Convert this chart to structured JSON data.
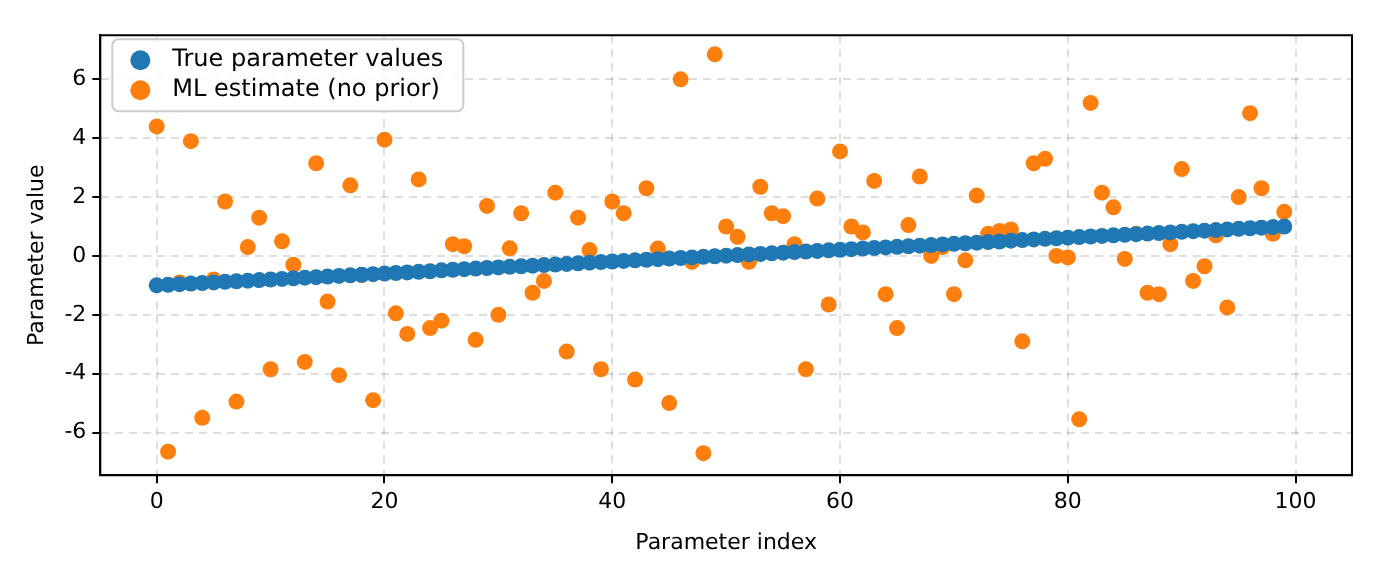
{
  "chart_data": {
    "type": "scatter",
    "xlabel": "Parameter index",
    "ylabel": "Parameter value",
    "x": [
      0,
      1,
      2,
      3,
      4,
      5,
      6,
      7,
      8,
      9,
      10,
      11,
      12,
      13,
      14,
      15,
      16,
      17,
      18,
      19,
      20,
      21,
      22,
      23,
      24,
      25,
      26,
      27,
      28,
      29,
      30,
      31,
      32,
      33,
      34,
      35,
      36,
      37,
      38,
      39,
      40,
      41,
      42,
      43,
      44,
      45,
      46,
      47,
      48,
      49,
      50,
      51,
      52,
      53,
      54,
      55,
      56,
      57,
      58,
      59,
      60,
      61,
      62,
      63,
      64,
      65,
      66,
      67,
      68,
      69,
      70,
      71,
      72,
      73,
      74,
      75,
      76,
      77,
      78,
      79,
      80,
      81,
      82,
      83,
      84,
      85,
      86,
      87,
      88,
      89,
      90,
      91,
      92,
      93,
      94,
      95,
      96,
      97,
      98,
      99
    ],
    "series": [
      {
        "name": "True parameter values",
        "color": "#1f77b4",
        "values": [
          -1.0,
          -0.98,
          -0.96,
          -0.94,
          -0.92,
          -0.9,
          -0.88,
          -0.86,
          -0.84,
          -0.82,
          -0.8,
          -0.78,
          -0.76,
          -0.74,
          -0.72,
          -0.7,
          -0.68,
          -0.66,
          -0.64,
          -0.62,
          -0.6,
          -0.58,
          -0.56,
          -0.54,
          -0.52,
          -0.49,
          -0.47,
          -0.45,
          -0.43,
          -0.41,
          -0.39,
          -0.37,
          -0.35,
          -0.33,
          -0.31,
          -0.29,
          -0.27,
          -0.25,
          -0.23,
          -0.21,
          -0.19,
          -0.17,
          -0.15,
          -0.13,
          -0.11,
          -0.09,
          -0.07,
          -0.05,
          -0.03,
          -0.01,
          0.01,
          0.03,
          0.05,
          0.07,
          0.09,
          0.11,
          0.13,
          0.15,
          0.17,
          0.19,
          0.21,
          0.23,
          0.25,
          0.27,
          0.29,
          0.31,
          0.33,
          0.35,
          0.37,
          0.39,
          0.41,
          0.43,
          0.45,
          0.47,
          0.49,
          0.52,
          0.54,
          0.56,
          0.58,
          0.6,
          0.62,
          0.64,
          0.66,
          0.68,
          0.7,
          0.72,
          0.74,
          0.76,
          0.78,
          0.8,
          0.82,
          0.84,
          0.86,
          0.88,
          0.9,
          0.92,
          0.94,
          0.96,
          0.98,
          1.0
        ]
      },
      {
        "name": "ML estimate (no prior)",
        "color": "#ff7f0e",
        "values": [
          4.4,
          -6.65,
          -0.9,
          3.9,
          -5.5,
          -0.8,
          1.85,
          -4.95,
          0.3,
          1.3,
          -3.85,
          0.5,
          -0.3,
          -3.6,
          3.15,
          -1.55,
          -4.05,
          2.4,
          -0.65,
          -4.9,
          3.95,
          -1.95,
          -2.65,
          2.6,
          -2.45,
          -2.2,
          0.4,
          0.33,
          -2.85,
          1.7,
          -2.0,
          0.26,
          1.45,
          -1.25,
          -0.85,
          2.15,
          -3.25,
          1.3,
          0.2,
          -3.85,
          1.85,
          1.45,
          -4.2,
          2.3,
          0.25,
          -5.0,
          6.0,
          -0.2,
          -6.7,
          6.85,
          1.0,
          0.65,
          -0.2,
          2.35,
          1.45,
          1.35,
          0.4,
          -3.85,
          1.95,
          -1.65,
          3.55,
          1.0,
          0.8,
          2.55,
          -1.3,
          -2.45,
          1.05,
          2.7,
          0,
          0.3,
          -1.3,
          -0.15,
          2.05,
          0.75,
          0.85,
          0.9,
          -2.9,
          3.15,
          3.3,
          0,
          -0.05,
          -5.55,
          5.2,
          2.15,
          1.65,
          -0.1,
          0.75,
          -1.25,
          -1.3,
          0.4,
          2.95,
          -0.85,
          -0.35,
          0.7,
          -1.75,
          2.0,
          4.85,
          2.3,
          0.75,
          1.5
        ]
      }
    ],
    "xlim": [
      -4.95,
      104.95
    ],
    "ylim": [
      -7.45,
      7.5
    ],
    "xticks": [
      0,
      20,
      40,
      60,
      80,
      100
    ],
    "yticks": [
      -6,
      -4,
      -2,
      0,
      2,
      4,
      6
    ],
    "grid": true,
    "legend": "top left",
    "marker": "circle"
  }
}
